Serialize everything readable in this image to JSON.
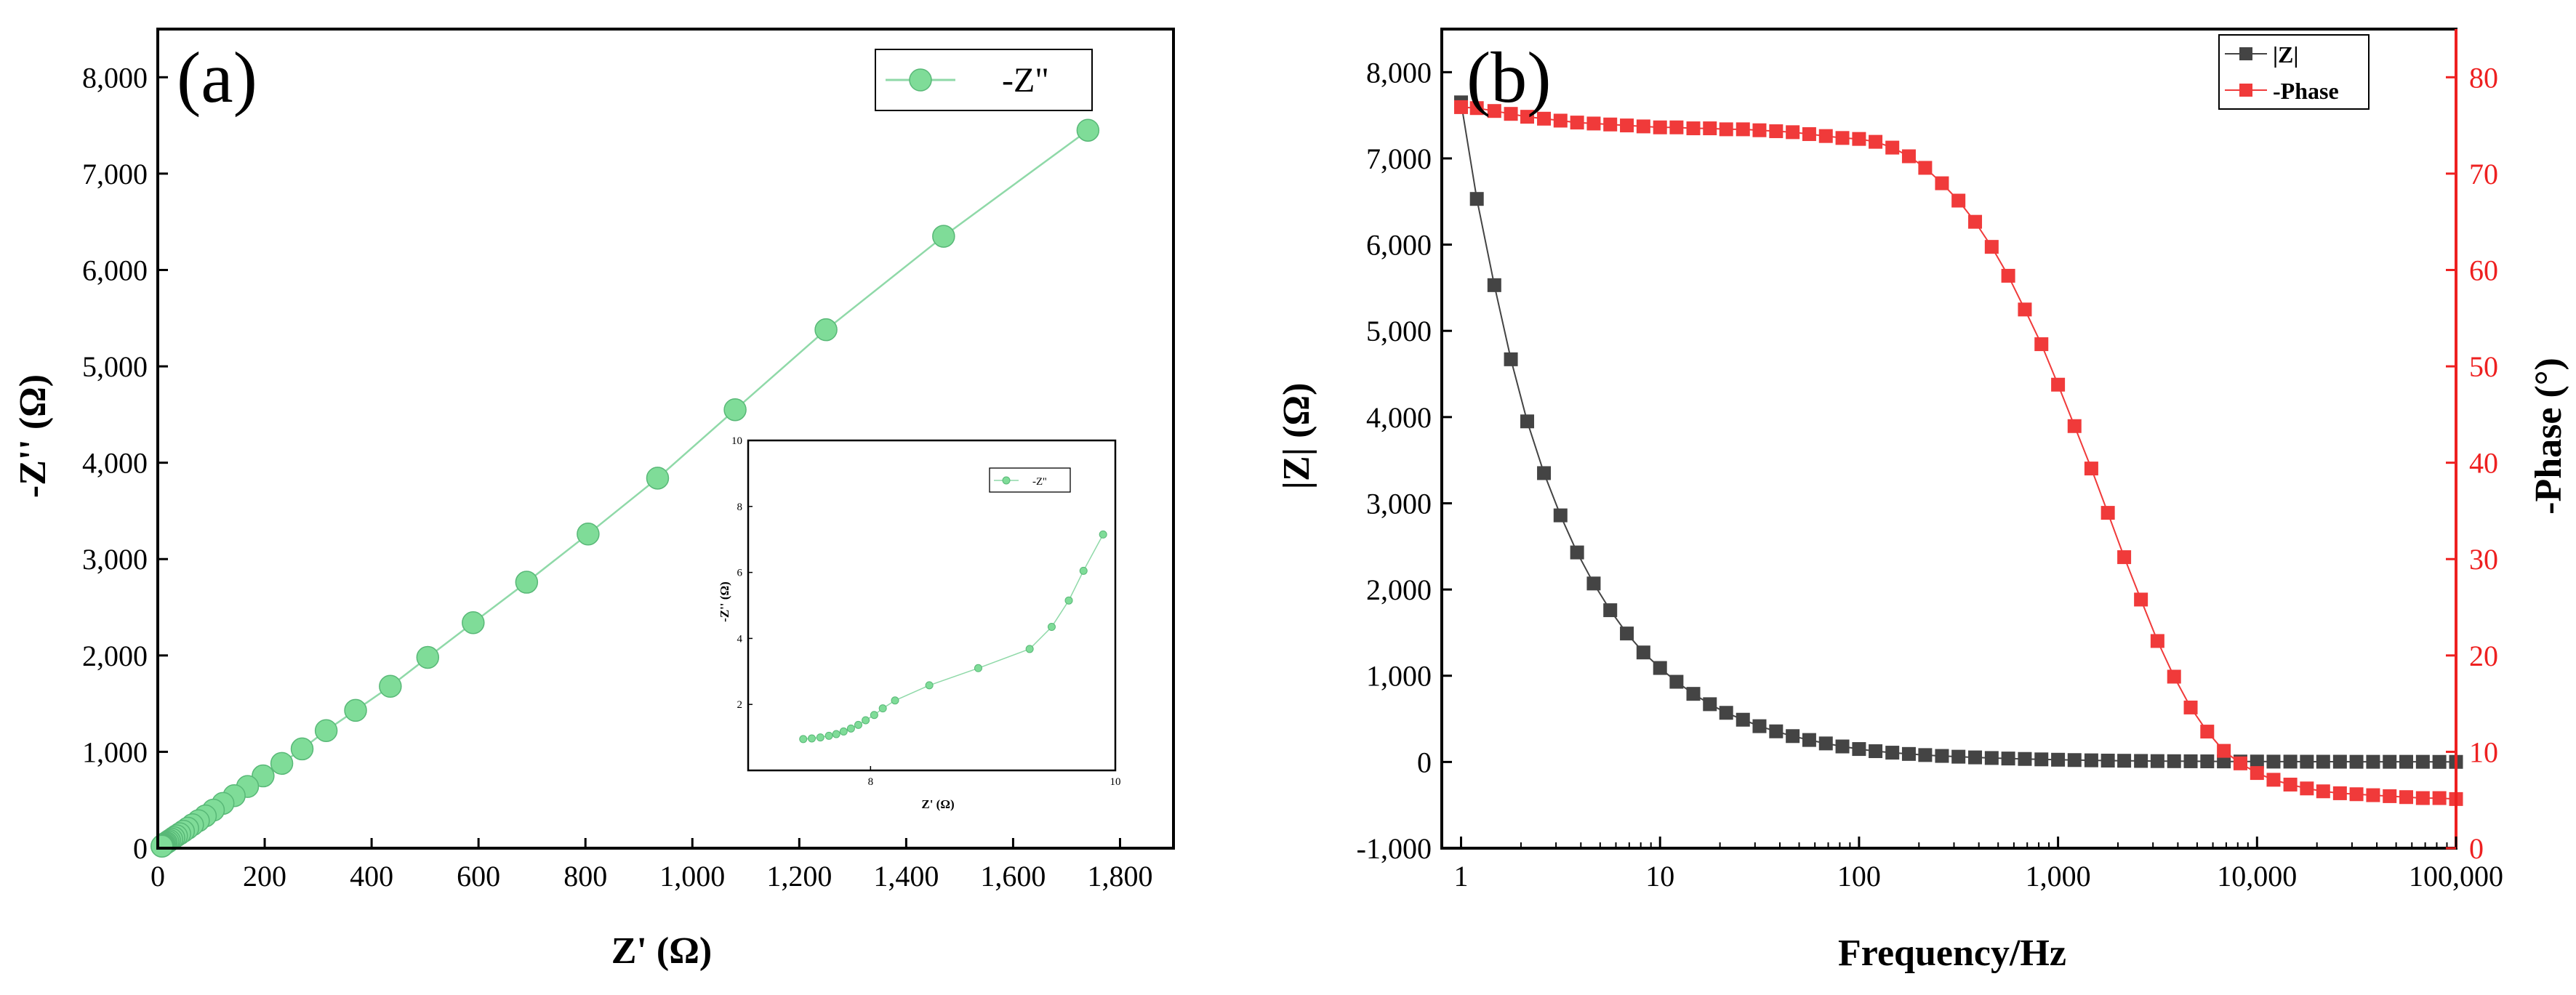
{
  "colors": {
    "green_line": "#8fd9a8",
    "green_marker": "#7fdc98",
    "dark_marker": "#444444",
    "red_marker": "#f03a3a",
    "red_axis": "#ee2020"
  },
  "chart_data": [
    {
      "id": "a",
      "type": "scatter",
      "panel_label": "(a)",
      "xlabel": "Z' (Ω)",
      "ylabel": "-Z'' (Ω)",
      "xlim": [
        0,
        1900
      ],
      "ylim": [
        0,
        8500
      ],
      "xticks": [
        0,
        200,
        400,
        600,
        800,
        1000,
        1200,
        1400,
        1600,
        1800
      ],
      "xtick_labels": [
        "0",
        "200",
        "400",
        "600",
        "800",
        "1,000",
        "1,200",
        "1,400",
        "1,600",
        "1,800"
      ],
      "yticks": [
        0,
        1000,
        2000,
        3000,
        4000,
        5000,
        6000,
        7000,
        8000
      ],
      "ytick_labels": [
        "0",
        "1,000",
        "2,000",
        "3,000",
        "4,000",
        "5,000",
        "6,000",
        "7,000",
        "8,000"
      ],
      "legend": "-Z\"",
      "series": [
        {
          "name": "-Z\"",
          "x": [
            1740,
            1470,
            1250,
            1080,
            935,
            805,
            690,
            590,
            505,
            435,
            370,
            315,
            270,
            232,
            197,
            168,
            143,
            122,
            104,
            89,
            76,
            65,
            56,
            48,
            41,
            35,
            30,
            26,
            22,
            19,
            16,
            14,
            12,
            10.5,
            9.3,
            8.4,
            7.8
          ],
          "y": [
            7450,
            6350,
            5380,
            4550,
            3840,
            3260,
            2760,
            2340,
            1980,
            1680,
            1430,
            1220,
            1030,
            880,
            750,
            640,
            545,
            465,
            395,
            335,
            285,
            243,
            207,
            176,
            150,
            128,
            109,
            93,
            79,
            67,
            57,
            49,
            41,
            35,
            30,
            25,
            21
          ]
        }
      ],
      "inset": {
        "type": "scatter",
        "xlabel": "Z' (Ω)",
        "ylabel": "-Z'' (Ω)",
        "xlim": [
          7,
          10
        ],
        "ylim": [
          0,
          10
        ],
        "xticks": [
          8,
          10
        ],
        "xtick_labels": [
          "8",
          "10"
        ],
        "yticks": [
          2,
          4,
          6,
          8,
          10
        ],
        "ytick_labels": [
          "2",
          "4",
          "6",
          "8",
          "10"
        ],
        "legend": "-Z''",
        "x": [
          7.45,
          7.52,
          7.59,
          7.66,
          7.72,
          7.78,
          7.84,
          7.9,
          7.96,
          8.03,
          8.1,
          8.2,
          8.48,
          8.88,
          9.3,
          9.48,
          9.62,
          9.74,
          9.9
        ],
        "y": [
          0.95,
          0.97,
          1.0,
          1.05,
          1.1,
          1.18,
          1.27,
          1.38,
          1.52,
          1.68,
          1.88,
          2.12,
          2.58,
          3.1,
          3.68,
          4.35,
          5.15,
          6.05,
          7.15
        ]
      }
    },
    {
      "id": "b",
      "type": "scatter",
      "panel_label": "(b)",
      "xlabel": "Frequency/Hz",
      "ylabel": "|Z| (Ω)",
      "ylabel_right": "-Phase (°)",
      "xscale": "log",
      "xlim": [
        0.8,
        100000
      ],
      "xticks": [
        1,
        10,
        100,
        1000,
        10000,
        100000
      ],
      "xtick_labels": [
        "1",
        "10",
        "100",
        "1,000",
        "10,000",
        "100,000"
      ],
      "ylim": [
        -1000,
        8500
      ],
      "yticks": [
        -1000,
        0,
        1000,
        2000,
        3000,
        4000,
        5000,
        6000,
        7000,
        8000
      ],
      "ytick_labels": [
        "-1,000",
        "0",
        "1,000",
        "2,000",
        "3,000",
        "4,000",
        "5,000",
        "6,000",
        "7,000",
        "8,000"
      ],
      "ylim_right": [
        0,
        85
      ],
      "yticks_right": [
        0,
        10,
        20,
        30,
        40,
        50,
        60,
        70,
        80
      ],
      "ytick_labels_right": [
        "0",
        "10",
        "20",
        "30",
        "40",
        "50",
        "60",
        "70",
        "80"
      ],
      "legend": [
        "|Z|",
        "-Phase"
      ],
      "series": [
        {
          "name": "|Z|",
          "axis": "left",
          "freq": [
            1,
            1.2,
            1.47,
            1.78,
            2.15,
            2.61,
            3.16,
            3.83,
            4.64,
            5.62,
            6.81,
            8.25,
            10,
            12.1,
            14.7,
            17.8,
            21.5,
            26.1,
            31.6,
            38.3,
            46.4,
            56.2,
            68.1,
            82.5,
            100,
            121,
            147,
            178,
            215,
            261,
            316,
            383,
            464,
            562,
            681,
            825,
            1000,
            1210,
            1470,
            1780,
            2150,
            2610,
            3160,
            3830,
            4640,
            5620,
            6810,
            8250,
            10000,
            12100,
            14700,
            17800,
            21500,
            26100,
            31600,
            38300,
            46400,
            56200,
            68100,
            82500,
            100000
          ],
          "values": [
            7650,
            6530,
            5530,
            4670,
            3950,
            3350,
            2860,
            2430,
            2070,
            1760,
            1490,
            1270,
            1090,
            930,
            790,
            670,
            570,
            490,
            415,
            355,
            300,
            255,
            215,
            180,
            150,
            125,
            108,
            93,
            80,
            70,
            61,
            53,
            46,
            40,
            35,
            30,
            26,
            22,
            19,
            16,
            14,
            12,
            10,
            9,
            8,
            7,
            6,
            5,
            5,
            4,
            4,
            3,
            3,
            3,
            2,
            2,
            2,
            2,
            2,
            1,
            1
          ]
        },
        {
          "name": "-Phase",
          "axis": "right",
          "freq": [
            1,
            1.2,
            1.47,
            1.78,
            2.15,
            2.61,
            3.16,
            3.83,
            4.64,
            5.62,
            6.81,
            8.25,
            10,
            12.1,
            14.7,
            17.8,
            21.5,
            26.1,
            31.6,
            38.3,
            46.4,
            56.2,
            68.1,
            82.5,
            100,
            121,
            147,
            178,
            215,
            261,
            316,
            383,
            464,
            562,
            681,
            825,
            1000,
            1210,
            1470,
            1780,
            2150,
            2610,
            3160,
            3830,
            4640,
            5620,
            6810,
            8250,
            10000,
            12100,
            14700,
            17800,
            21500,
            26100,
            31600,
            38300,
            46400,
            56200,
            68100,
            82500,
            100000
          ],
          "values": [
            76.9,
            76.8,
            76.5,
            76.2,
            75.9,
            75.7,
            75.5,
            75.3,
            75.2,
            75.1,
            75.0,
            74.9,
            74.8,
            74.8,
            74.7,
            74.7,
            74.6,
            74.6,
            74.5,
            74.4,
            74.3,
            74.1,
            73.9,
            73.7,
            73.6,
            73.3,
            72.7,
            71.8,
            70.6,
            69.0,
            67.2,
            65.0,
            62.4,
            59.4,
            55.9,
            52.3,
            48.1,
            43.8,
            39.4,
            34.8,
            30.2,
            25.8,
            21.5,
            17.8,
            14.6,
            12.1,
            10.1,
            8.8,
            7.8,
            7.1,
            6.6,
            6.2,
            5.9,
            5.7,
            5.6,
            5.5,
            5.4,
            5.3,
            5.2,
            5.2,
            5.1
          ]
        }
      ]
    }
  ]
}
